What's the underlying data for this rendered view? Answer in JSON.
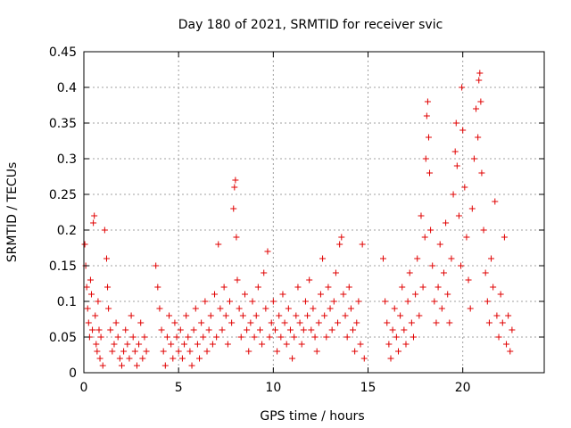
{
  "chart_data": {
    "type": "scatter",
    "title": "Day 180 of 2021, SRMTID for receiver svic",
    "xlabel": "GPS time / hours",
    "ylabel": "SRMTID / TECUs",
    "xlim": [
      0,
      24.3
    ],
    "ylim": [
      0,
      0.45
    ],
    "x_ticks": [
      0,
      5,
      10,
      15,
      20
    ],
    "x_tick_labels": [
      "0",
      "5",
      "10",
      "15",
      "20"
    ],
    "y_ticks": [
      0,
      0.05,
      0.1,
      0.15,
      0.2,
      0.25,
      0.3,
      0.35,
      0.4,
      0.45
    ],
    "y_tick_labels": [
      "0",
      "0.05",
      "0.1",
      "0.15",
      "0.2",
      "0.25",
      "0.3",
      "0.35",
      "0.4",
      "0.45"
    ],
    "grid": true,
    "marker": "plus",
    "marker_color": "#e00000",
    "series": [
      {
        "points": [
          [
            0.05,
            0.18
          ],
          [
            0.1,
            0.15
          ],
          [
            0.15,
            0.12
          ],
          [
            0.2,
            0.09
          ],
          [
            0.25,
            0.07
          ],
          [
            0.3,
            0.05
          ],
          [
            0.35,
            0.13
          ],
          [
            0.4,
            0.11
          ],
          [
            0.45,
            0.06
          ],
          [
            0.5,
            0.21
          ],
          [
            0.55,
            0.22
          ],
          [
            0.6,
            0.08
          ],
          [
            0.65,
            0.04
          ],
          [
            0.7,
            0.03
          ],
          [
            0.75,
            0.1
          ],
          [
            0.8,
            0.06
          ],
          [
            0.85,
            0.02
          ],
          [
            0.9,
            0.05
          ],
          [
            1.0,
            0.01
          ],
          [
            1.1,
            0.2
          ],
          [
            1.2,
            0.16
          ],
          [
            1.25,
            0.12
          ],
          [
            1.3,
            0.09
          ],
          [
            1.4,
            0.06
          ],
          [
            1.5,
            0.03
          ],
          [
            1.6,
            0.04
          ],
          [
            1.7,
            0.07
          ],
          [
            1.8,
            0.05
          ],
          [
            1.9,
            0.02
          ],
          [
            2.0,
            0.01
          ],
          [
            2.1,
            0.03
          ],
          [
            2.2,
            0.06
          ],
          [
            2.3,
            0.04
          ],
          [
            2.4,
            0.02
          ],
          [
            2.5,
            0.08
          ],
          [
            2.6,
            0.05
          ],
          [
            2.7,
            0.03
          ],
          [
            2.8,
            0.01
          ],
          [
            2.9,
            0.04
          ],
          [
            3.0,
            0.07
          ],
          [
            3.1,
            0.02
          ],
          [
            3.2,
            0.05
          ],
          [
            3.3,
            0.03
          ],
          [
            3.8,
            0.15
          ],
          [
            3.9,
            0.12
          ],
          [
            4.0,
            0.09
          ],
          [
            4.1,
            0.06
          ],
          [
            4.2,
            0.03
          ],
          [
            4.3,
            0.01
          ],
          [
            4.4,
            0.05
          ],
          [
            4.5,
            0.08
          ],
          [
            4.6,
            0.04
          ],
          [
            4.7,
            0.02
          ],
          [
            4.8,
            0.07
          ],
          [
            4.9,
            0.05
          ],
          [
            5.0,
            0.03
          ],
          [
            5.1,
            0.06
          ],
          [
            5.2,
            0.02
          ],
          [
            5.3,
            0.04
          ],
          [
            5.4,
            0.08
          ],
          [
            5.5,
            0.05
          ],
          [
            5.6,
            0.03
          ],
          [
            5.7,
            0.01
          ],
          [
            5.8,
            0.06
          ],
          [
            5.9,
            0.09
          ],
          [
            6.0,
            0.04
          ],
          [
            6.1,
            0.02
          ],
          [
            6.2,
            0.07
          ],
          [
            6.3,
            0.05
          ],
          [
            6.4,
            0.1
          ],
          [
            6.5,
            0.03
          ],
          [
            6.6,
            0.06
          ],
          [
            6.7,
            0.08
          ],
          [
            6.8,
            0.04
          ],
          [
            6.9,
            0.11
          ],
          [
            7.0,
            0.05
          ],
          [
            7.1,
            0.18
          ],
          [
            7.2,
            0.09
          ],
          [
            7.3,
            0.06
          ],
          [
            7.4,
            0.12
          ],
          [
            7.5,
            0.08
          ],
          [
            7.6,
            0.04
          ],
          [
            7.7,
            0.1
          ],
          [
            7.8,
            0.07
          ],
          [
            7.9,
            0.23
          ],
          [
            7.95,
            0.26
          ],
          [
            8.0,
            0.27
          ],
          [
            8.05,
            0.19
          ],
          [
            8.1,
            0.13
          ],
          [
            8.2,
            0.09
          ],
          [
            8.3,
            0.05
          ],
          [
            8.4,
            0.08
          ],
          [
            8.5,
            0.11
          ],
          [
            8.6,
            0.06
          ],
          [
            8.7,
            0.03
          ],
          [
            8.8,
            0.07
          ],
          [
            8.9,
            0.1
          ],
          [
            9.0,
            0.05
          ],
          [
            9.1,
            0.08
          ],
          [
            9.2,
            0.12
          ],
          [
            9.3,
            0.06
          ],
          [
            9.4,
            0.04
          ],
          [
            9.5,
            0.14
          ],
          [
            9.6,
            0.09
          ],
          [
            9.7,
            0.17
          ],
          [
            9.8,
            0.05
          ],
          [
            9.9,
            0.07
          ],
          [
            10.0,
            0.1
          ],
          [
            10.1,
            0.06
          ],
          [
            10.2,
            0.03
          ],
          [
            10.3,
            0.08
          ],
          [
            10.4,
            0.05
          ],
          [
            10.5,
            0.11
          ],
          [
            10.6,
            0.07
          ],
          [
            10.7,
            0.04
          ],
          [
            10.8,
            0.09
          ],
          [
            10.9,
            0.06
          ],
          [
            11.0,
            0.02
          ],
          [
            11.1,
            0.05
          ],
          [
            11.2,
            0.08
          ],
          [
            11.3,
            0.12
          ],
          [
            11.4,
            0.07
          ],
          [
            11.5,
            0.04
          ],
          [
            11.6,
            0.06
          ],
          [
            11.7,
            0.1
          ],
          [
            11.8,
            0.08
          ],
          [
            11.9,
            0.13
          ],
          [
            12.0,
            0.06
          ],
          [
            12.1,
            0.09
          ],
          [
            12.2,
            0.05
          ],
          [
            12.3,
            0.03
          ],
          [
            12.4,
            0.07
          ],
          [
            12.5,
            0.11
          ],
          [
            12.6,
            0.16
          ],
          [
            12.7,
            0.08
          ],
          [
            12.8,
            0.05
          ],
          [
            12.9,
            0.12
          ],
          [
            13.0,
            0.09
          ],
          [
            13.1,
            0.06
          ],
          [
            13.2,
            0.1
          ],
          [
            13.3,
            0.14
          ],
          [
            13.4,
            0.07
          ],
          [
            13.5,
            0.18
          ],
          [
            13.6,
            0.19
          ],
          [
            13.7,
            0.11
          ],
          [
            13.8,
            0.08
          ],
          [
            13.9,
            0.05
          ],
          [
            14.0,
            0.12
          ],
          [
            14.1,
            0.09
          ],
          [
            14.2,
            0.06
          ],
          [
            14.3,
            0.03
          ],
          [
            14.4,
            0.07
          ],
          [
            14.5,
            0.1
          ],
          [
            14.6,
            0.04
          ],
          [
            14.7,
            0.18
          ],
          [
            14.8,
            0.02
          ],
          [
            15.8,
            0.16
          ],
          [
            15.9,
            0.1
          ],
          [
            16.0,
            0.07
          ],
          [
            16.1,
            0.04
          ],
          [
            16.2,
            0.02
          ],
          [
            16.3,
            0.06
          ],
          [
            16.4,
            0.09
          ],
          [
            16.5,
            0.05
          ],
          [
            16.6,
            0.03
          ],
          [
            16.7,
            0.08
          ],
          [
            16.8,
            0.12
          ],
          [
            16.9,
            0.06
          ],
          [
            17.0,
            0.04
          ],
          [
            17.1,
            0.1
          ],
          [
            17.2,
            0.14
          ],
          [
            17.3,
            0.07
          ],
          [
            17.4,
            0.05
          ],
          [
            17.5,
            0.11
          ],
          [
            17.6,
            0.16
          ],
          [
            17.7,
            0.08
          ],
          [
            17.8,
            0.22
          ],
          [
            17.9,
            0.12
          ],
          [
            18.0,
            0.19
          ],
          [
            18.05,
            0.3
          ],
          [
            18.1,
            0.36
          ],
          [
            18.15,
            0.38
          ],
          [
            18.2,
            0.33
          ],
          [
            18.25,
            0.28
          ],
          [
            18.3,
            0.2
          ],
          [
            18.4,
            0.15
          ],
          [
            18.5,
            0.1
          ],
          [
            18.6,
            0.07
          ],
          [
            18.7,
            0.12
          ],
          [
            18.8,
            0.18
          ],
          [
            18.9,
            0.09
          ],
          [
            19.0,
            0.14
          ],
          [
            19.1,
            0.21
          ],
          [
            19.2,
            0.11
          ],
          [
            19.3,
            0.07
          ],
          [
            19.4,
            0.16
          ],
          [
            19.5,
            0.25
          ],
          [
            19.6,
            0.31
          ],
          [
            19.65,
            0.35
          ],
          [
            19.7,
            0.29
          ],
          [
            19.8,
            0.22
          ],
          [
            19.9,
            0.15
          ],
          [
            19.95,
            0.4
          ],
          [
            20.0,
            0.34
          ],
          [
            20.1,
            0.26
          ],
          [
            20.2,
            0.19
          ],
          [
            20.3,
            0.13
          ],
          [
            20.4,
            0.09
          ],
          [
            20.5,
            0.23
          ],
          [
            20.6,
            0.3
          ],
          [
            20.7,
            0.37
          ],
          [
            20.8,
            0.33
          ],
          [
            20.85,
            0.41
          ],
          [
            20.9,
            0.42
          ],
          [
            20.95,
            0.38
          ],
          [
            21.0,
            0.28
          ],
          [
            21.1,
            0.2
          ],
          [
            21.2,
            0.14
          ],
          [
            21.3,
            0.1
          ],
          [
            21.4,
            0.07
          ],
          [
            21.5,
            0.16
          ],
          [
            21.6,
            0.12
          ],
          [
            21.7,
            0.24
          ],
          [
            21.8,
            0.08
          ],
          [
            21.9,
            0.05
          ],
          [
            22.0,
            0.11
          ],
          [
            22.1,
            0.07
          ],
          [
            22.2,
            0.19
          ],
          [
            22.3,
            0.04
          ],
          [
            22.4,
            0.08
          ],
          [
            22.5,
            0.03
          ],
          [
            22.6,
            0.06
          ]
        ]
      }
    ]
  }
}
